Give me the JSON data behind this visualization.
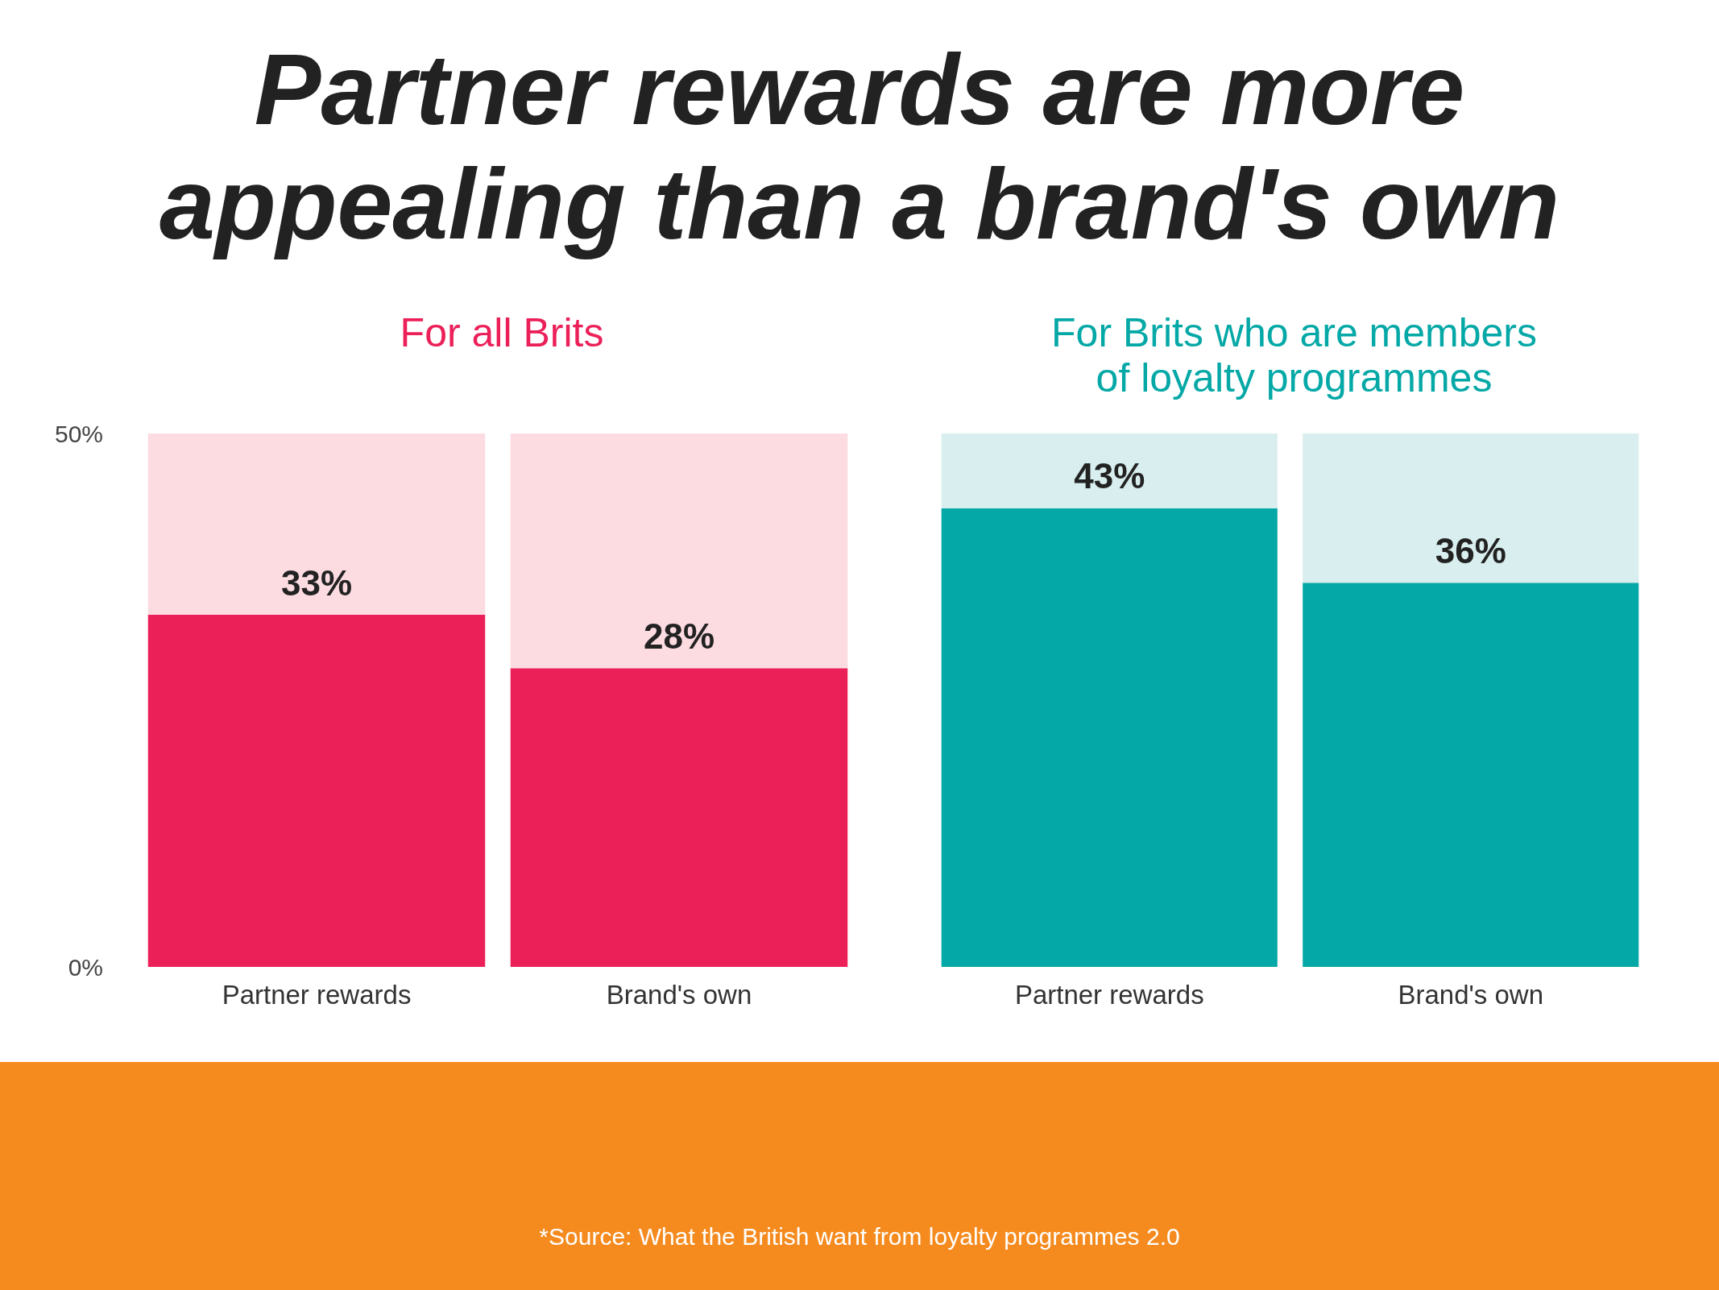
{
  "chart_data": [
    {
      "type": "bar",
      "title": "Partner rewards are more appealing than a brand's own",
      "subtitle": "For all Brits",
      "categories": [
        "Partner rewards",
        "Brand's own"
      ],
      "stacked": true,
      "series": [
        {
          "color": "#ec2059",
          "values": [
            33,
            28
          ],
          "value_labels": [
            "33%",
            "28%"
          ]
        },
        {
          "color": "#fcdbe1",
          "values": [
            17,
            22
          ]
        }
      ],
      "ylim": [
        0,
        50
      ],
      "yticks": [
        {
          "value": 0,
          "label": "0%"
        },
        {
          "value": 50,
          "label": "50%"
        }
      ],
      "annotations": [
        "*Source: What the British want from loyalty programmes 2.0"
      ]
    },
    {
      "type": "bar",
      "subtitle": "For Brits who are members\nof loyalty programmes",
      "categories": [
        "Partner rewards",
        "Brand's own"
      ],
      "stacked": true,
      "series": [
        {
          "color": "#04a8a6",
          "values": [
            43,
            36
          ],
          "value_labels": [
            "43%",
            "36%"
          ]
        },
        {
          "color": "#d9eeee",
          "values": [
            7,
            14
          ]
        }
      ],
      "ylim": [
        0,
        50
      ],
      "tick_labels": "x"
    }
  ]
}
